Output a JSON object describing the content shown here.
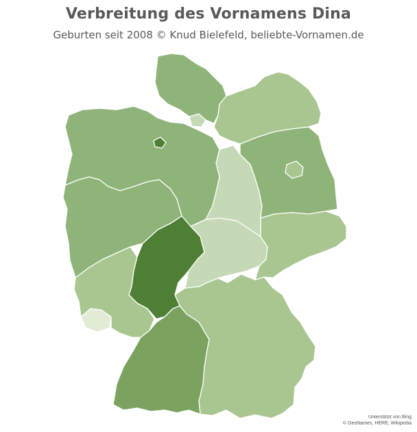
{
  "title": "Verbreitung des Vornamens Dina",
  "subtitle": "Geburten seit 2008 © Knud Bielefeld,  beliebte-Vornamen.de",
  "attribution": {
    "line1": "Unterstützt von Bing",
    "line2": "© GeoNames, HERE, Wikipedia"
  },
  "colors": {
    "level0": "#e2ebd5",
    "level1": "#c6d9b6",
    "level2": "#a9c691",
    "level3": "#8fb479",
    "level4": "#7ba35f",
    "level5": "#4f7f35"
  },
  "regions": [
    {
      "name": "Schleswig-Holstein",
      "level": 3
    },
    {
      "name": "Hamburg",
      "level": 1
    },
    {
      "name": "Mecklenburg-Vorpommern",
      "level": 2
    },
    {
      "name": "Niedersachsen",
      "level": 3
    },
    {
      "name": "Bremen",
      "level": 5
    },
    {
      "name": "Brandenburg",
      "level": 3
    },
    {
      "name": "Berlin",
      "level": 2
    },
    {
      "name": "Sachsen-Anhalt",
      "level": 1
    },
    {
      "name": "Nordrhein-Westfalen",
      "level": 3
    },
    {
      "name": "Hessen",
      "level": 5
    },
    {
      "name": "Thüringen",
      "level": 1
    },
    {
      "name": "Sachsen",
      "level": 2
    },
    {
      "name": "Rheinland-Pfalz",
      "level": 2
    },
    {
      "name": "Saarland",
      "level": 0
    },
    {
      "name": "Baden-Württemberg",
      "level": 4
    },
    {
      "name": "Bayern",
      "level": 2
    }
  ]
}
